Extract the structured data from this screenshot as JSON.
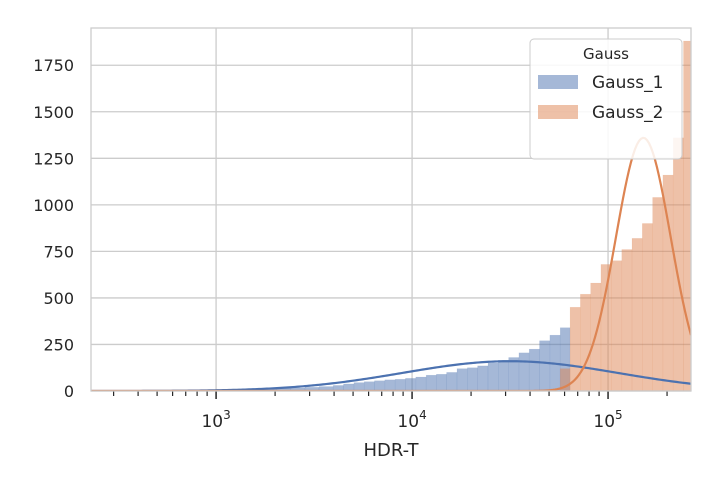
{
  "chart_data": {
    "type": "histogram",
    "xlabel": "HDR-T",
    "ylabel": "",
    "xscale": "log",
    "xlim": [
      230,
      265000
    ],
    "ylim": [
      0,
      1950
    ],
    "y_ticks": [
      0,
      250,
      500,
      750,
      1000,
      1250,
      1500,
      1750
    ],
    "y_tick_labels": [
      "0",
      "250",
      "500",
      "750",
      "1000",
      "1250",
      "1500",
      "1750"
    ],
    "x_ticks": [
      {
        "value": 1000,
        "base": "10",
        "exp": "3"
      },
      {
        "value": 10000,
        "base": "10",
        "exp": "4"
      },
      {
        "value": 100000,
        "base": "10",
        "exp": "5"
      }
    ],
    "grid": true,
    "legend": {
      "title": "Gauss",
      "placement": "top-right",
      "entries": [
        "Gauss_1",
        "Gauss_2"
      ]
    },
    "series": [
      {
        "name": "Gauss_1",
        "color": "#4c72b0",
        "bins": [
          [
            230,
            270,
            2
          ],
          [
            270,
            320,
            2
          ],
          [
            320,
            380,
            2
          ],
          [
            380,
            450,
            2
          ],
          [
            450,
            530,
            3
          ],
          [
            530,
            630,
            3
          ],
          [
            630,
            740,
            3
          ],
          [
            740,
            880,
            4
          ],
          [
            880,
            1040,
            5
          ],
          [
            1040,
            1230,
            6
          ],
          [
            1230,
            1450,
            7
          ],
          [
            1450,
            1720,
            9
          ],
          [
            1720,
            2030,
            11
          ],
          [
            2030,
            2400,
            14
          ],
          [
            2400,
            2840,
            16
          ],
          [
            2840,
            3350,
            20
          ],
          [
            3350,
            3960,
            24
          ],
          [
            3960,
            4470,
            30
          ],
          [
            4470,
            5050,
            38
          ],
          [
            5050,
            5700,
            45
          ],
          [
            5700,
            6430,
            50
          ],
          [
            6430,
            7260,
            55
          ],
          [
            7260,
            8200,
            60
          ],
          [
            8200,
            9250,
            63
          ],
          [
            9250,
            10450,
            68
          ],
          [
            10450,
            11800,
            75
          ],
          [
            11800,
            13300,
            85
          ],
          [
            13300,
            15000,
            90
          ],
          [
            15000,
            16950,
            100
          ],
          [
            16950,
            19150,
            120
          ],
          [
            19150,
            21600,
            125
          ],
          [
            21600,
            24400,
            135
          ],
          [
            24400,
            27550,
            150
          ],
          [
            27550,
            31100,
            165
          ],
          [
            31100,
            35100,
            180
          ],
          [
            35100,
            39600,
            205
          ],
          [
            39600,
            44700,
            225
          ],
          [
            44700,
            50500,
            270
          ],
          [
            50500,
            57000,
            300
          ],
          [
            57000,
            64000,
            340
          ]
        ],
        "curve": {
          "mu_log10": 4.5,
          "sigma_log10": 0.55,
          "peak": 160
        }
      },
      {
        "name": "Gauss_2",
        "color": "#dd8452",
        "bins": [
          [
            57000,
            64000,
            120
          ],
          [
            64000,
            72200,
            450
          ],
          [
            72200,
            81500,
            520
          ],
          [
            81500,
            92000,
            580
          ],
          [
            92000,
            104000,
            680
          ],
          [
            104000,
            117500,
            700
          ],
          [
            117500,
            132500,
            760
          ],
          [
            132500,
            149500,
            820
          ],
          [
            149500,
            168800,
            900
          ],
          [
            168800,
            190500,
            1040
          ],
          [
            190500,
            215000,
            1160
          ],
          [
            215000,
            242600,
            1360
          ],
          [
            242600,
            265000,
            1880
          ]
        ],
        "curve": {
          "mu_log10": 5.18,
          "sigma_log10": 0.14,
          "peak": 1360
        }
      }
    ]
  }
}
